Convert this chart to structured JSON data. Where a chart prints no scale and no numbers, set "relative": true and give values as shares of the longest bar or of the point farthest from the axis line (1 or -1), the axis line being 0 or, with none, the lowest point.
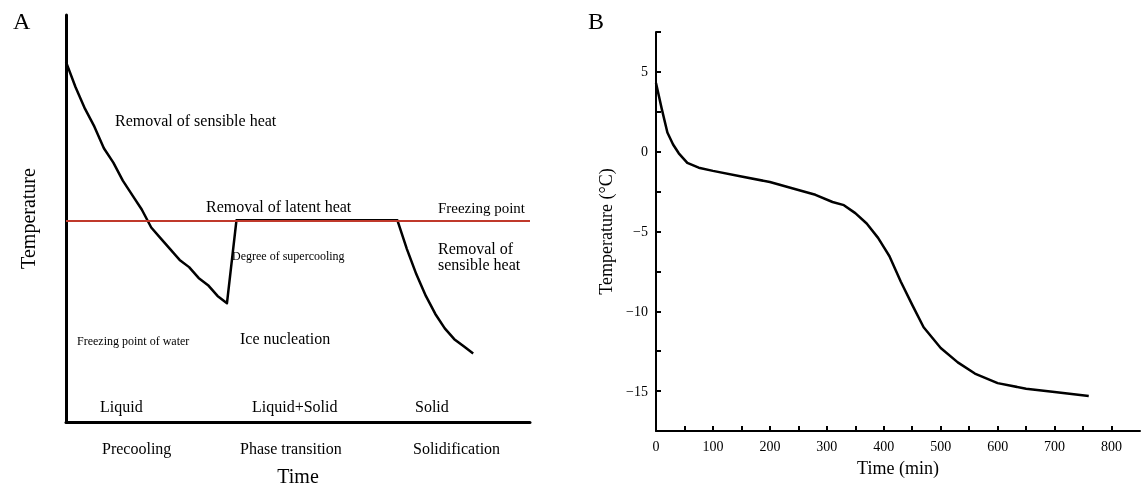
{
  "chart_data": [
    {
      "type": "line",
      "title": "A",
      "xlabel": "Time",
      "ylabel": "Temperature",
      "relative": true,
      "color": "#000000",
      "categories": [
        null,
        null,
        null,
        null,
        null,
        null,
        null,
        null,
        null,
        null,
        null,
        null,
        null,
        null,
        null,
        null,
        null,
        null,
        null,
        null,
        null,
        null,
        null,
        null,
        null,
        null,
        null,
        null,
        null,
        null,
        null,
        null,
        null,
        null,
        null,
        null,
        null,
        null,
        null,
        null,
        null,
        null,
        null,
        null,
        null,
        null,
        null,
        null,
        null,
        null
      ],
      "values": [
        1.0,
        0.93,
        0.87,
        0.82,
        0.76,
        0.72,
        0.67,
        0.63,
        0.59,
        0.54,
        0.51,
        0.48,
        0.45,
        0.43,
        0.4,
        0.38,
        0.35,
        0.33,
        0.56,
        0.56,
        0.56,
        0.56,
        0.56,
        0.56,
        0.56,
        0.56,
        0.56,
        0.56,
        0.56,
        0.56,
        0.56,
        0.56,
        0.56,
        0.56,
        0.56,
        0.56,
        0.48,
        0.41,
        0.35,
        0.3,
        0.26,
        0.23,
        0.21,
        0.19,
        null,
        null,
        null,
        null,
        null,
        null
      ],
      "ref_lines": [
        {
          "axis": "y",
          "value": 0.56,
          "label": "Freezing point",
          "color": "#c0392b"
        }
      ],
      "annotations": [
        "Removal of sensible heat",
        "Freezing point of water",
        "Removal of latent heat",
        "Degree of supercooling",
        "Ice nucleation",
        "Removal of sensible heat",
        "Liquid",
        "Liquid+Solid",
        "Solid",
        "Precooling",
        "Phase transition",
        "Solidification"
      ]
    },
    {
      "type": "line",
      "title": "B",
      "xlabel": "Time (min)",
      "ylabel": "Temperature (°C)",
      "color": "#000000",
      "x": [
        0,
        10,
        20,
        30,
        40,
        55,
        75,
        100,
        150,
        200,
        250,
        280,
        310,
        330,
        350,
        370,
        390,
        410,
        430,
        450,
        470,
        500,
        530,
        560,
        600,
        650,
        700,
        760
      ],
      "values": [
        4.3,
        2.7,
        1.2,
        0.45,
        -0.1,
        -0.7,
        -1.0,
        -1.2,
        -1.55,
        -1.9,
        -2.4,
        -2.7,
        -3.15,
        -3.35,
        -3.85,
        -4.5,
        -5.4,
        -6.55,
        -8.15,
        -9.6,
        -11.0,
        -12.3,
        -13.2,
        -13.9,
        -14.5,
        -14.85,
        -15.05,
        -15.3
      ],
      "xlim": [
        0,
        850
      ],
      "xticks": [
        0,
        {
          "value": 50,
          "label": null
        },
        100,
        {
          "value": 150,
          "label": null
        },
        200,
        {
          "value": 250,
          "label": null
        },
        300,
        {
          "value": 350,
          "label": null
        },
        400,
        {
          "value": 450,
          "label": null
        },
        500,
        {
          "value": 550,
          "label": null
        },
        600,
        {
          "value": 650,
          "label": null
        },
        700,
        {
          "value": 750,
          "label": null
        },
        800
      ],
      "ylim": [
        -17.5,
        7.5
      ],
      "yticks": [
        {
          "value": -17.5,
          "label": null
        },
        -15,
        {
          "value": -12.5,
          "label": null
        },
        -10,
        {
          "value": -7.5,
          "label": null
        },
        -5,
        {
          "value": -2.5,
          "label": null
        },
        0,
        {
          "value": 2.5,
          "label": null
        },
        5,
        {
          "value": 7.5,
          "label": null
        }
      ]
    }
  ]
}
